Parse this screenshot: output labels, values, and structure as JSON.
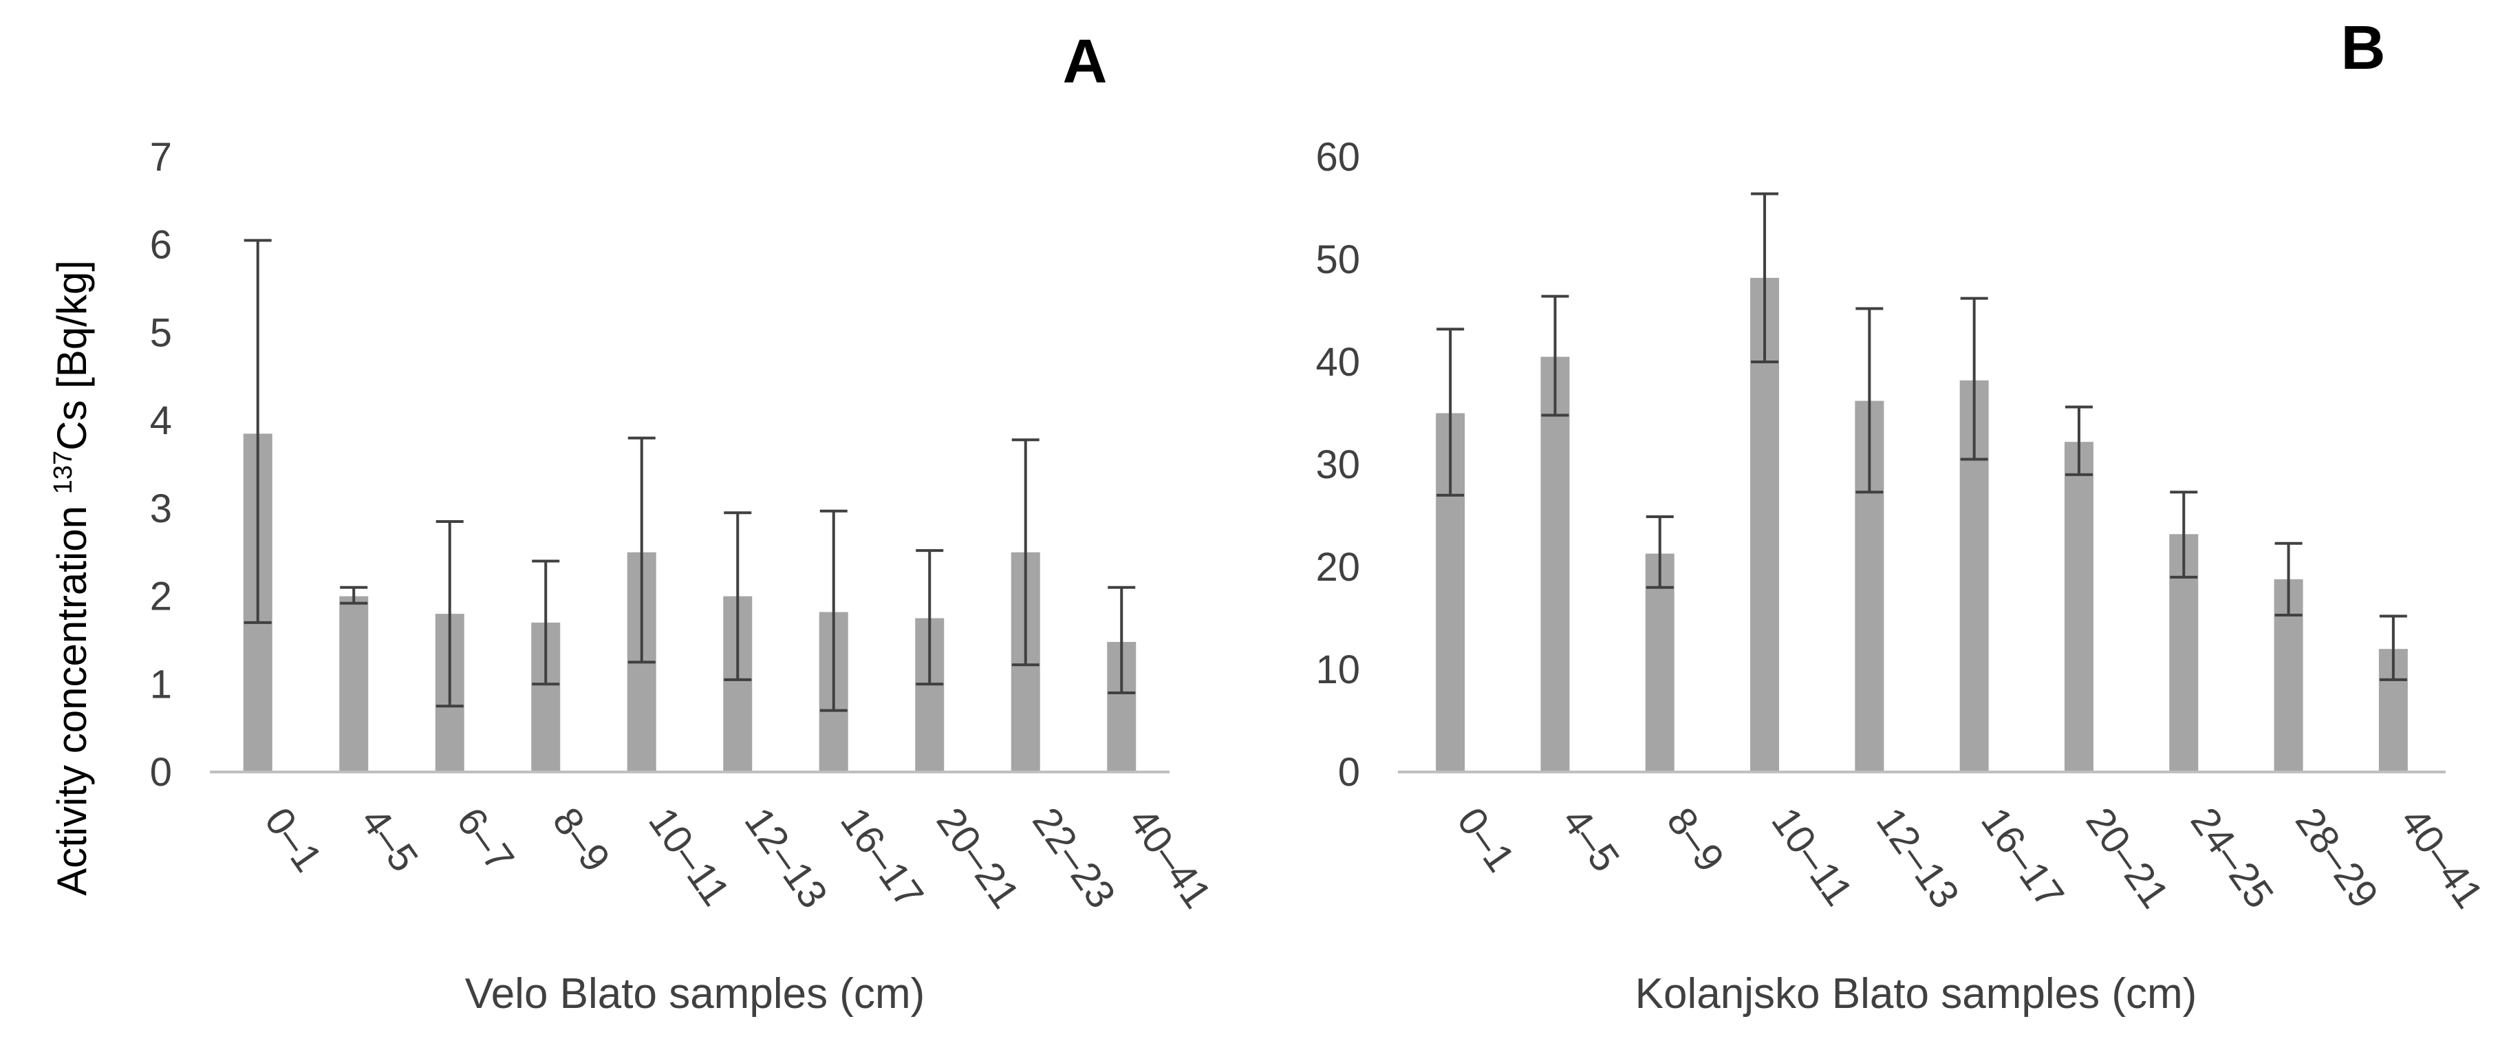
{
  "figure": {
    "ylabel_main": "Activity concentration ",
    "ylabel_sup": "137",
    "ylabel_rest": "Cs [Bq/kg]",
    "colors": {
      "bar": "#a5a5a5",
      "axis": "#bfbfbf",
      "error": "#404040",
      "text": "#404040"
    }
  },
  "chart_data": [
    {
      "type": "bar",
      "panel": "A",
      "title": "",
      "xlabel": "Velo Blato samples (cm)",
      "ylim": [
        0,
        7
      ],
      "yticks": [
        0,
        1,
        2,
        3,
        4,
        5,
        6,
        7
      ],
      "categories": [
        "0–1",
        "4–5",
        "6–7",
        "8–9",
        "10–11",
        "12–13",
        "16–17",
        "20–21",
        "22–23",
        "40–41"
      ],
      "values": [
        3.85,
        2.0,
        1.8,
        1.7,
        2.5,
        2.0,
        1.82,
        1.75,
        2.5,
        1.48
      ],
      "error_low": [
        1.7,
        1.92,
        0.75,
        1.0,
        1.25,
        1.05,
        0.7,
        1.0,
        1.22,
        0.9
      ],
      "error_high": [
        6.05,
        2.1,
        2.85,
        2.4,
        3.8,
        2.95,
        2.97,
        2.52,
        3.78,
        2.1
      ]
    },
    {
      "type": "bar",
      "panel": "B",
      "title": "",
      "xlabel": "Kolanjsko Blato samples (cm)",
      "ylim": [
        0,
        60
      ],
      "yticks": [
        0,
        10,
        20,
        30,
        40,
        50,
        60
      ],
      "categories": [
        "0–1",
        "4–5",
        "8–9",
        "10–11",
        "12–13",
        "16–17",
        "20–21",
        "24–25",
        "28–29",
        "40–41"
      ],
      "values": [
        35,
        40.5,
        21.3,
        48.2,
        36.2,
        38.2,
        32.2,
        23.2,
        18.8,
        12
      ],
      "error_low": [
        27,
        34.8,
        18,
        40,
        27.3,
        30.5,
        29,
        19,
        15.3,
        9
      ],
      "error_high": [
        43.2,
        46.4,
        24.9,
        56.4,
        45.2,
        46.2,
        35.6,
        27.3,
        22.3,
        15.2
      ]
    }
  ]
}
